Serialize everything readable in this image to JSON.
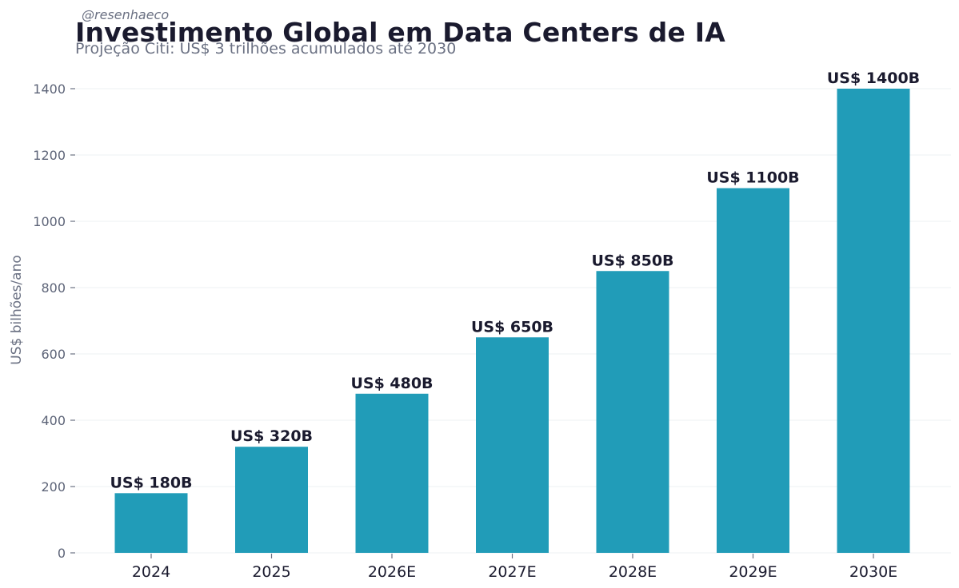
{
  "handle": "@resenhaeco",
  "chart_data": {
    "type": "bar",
    "title": "Investimento Global em Data Centers de IA",
    "subtitle": "Projeção Citi: US$ 3 trilhões acumulados até 2030",
    "xlabel": "",
    "ylabel": "US$ bilhões/ano",
    "categories": [
      "2024",
      "2025",
      "2026E",
      "2027E",
      "2028E",
      "2029E",
      "2030E"
    ],
    "values": [
      180,
      320,
      480,
      650,
      850,
      1100,
      1400
    ],
    "data_labels": [
      "US$ 180B",
      "US$ 320B",
      "US$ 480B",
      "US$ 650B",
      "US$ 850B",
      "US$ 1100B",
      "US$ 1400B"
    ],
    "yticks": [
      0,
      200,
      400,
      600,
      800,
      1000,
      1200,
      1400
    ],
    "ylim": [
      0,
      1400
    ],
    "grid": true,
    "colors": {
      "bar": "#219cb8",
      "grid": "#eef0f3",
      "text": "#1a1a2e",
      "muted": "#6b7183"
    }
  }
}
